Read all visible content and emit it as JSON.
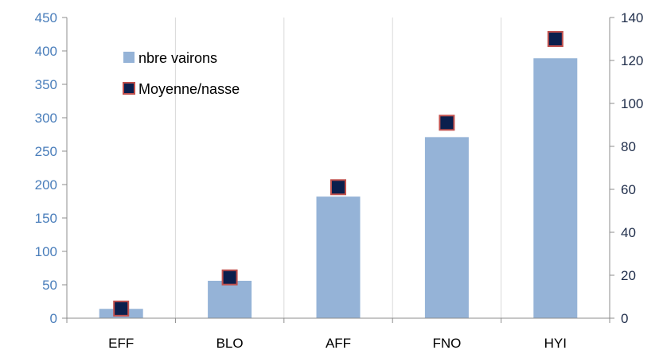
{
  "chart_data": {
    "type": "bar",
    "categories": [
      "EFF",
      "BLO",
      "AFF",
      "FNO",
      "HYI"
    ],
    "series": [
      {
        "name": "nbre vairons",
        "type": "bar",
        "axis": "left",
        "values": [
          14,
          56,
          182,
          271,
          389
        ],
        "color": "#95b3d7"
      },
      {
        "name": "Moyenne/nasse",
        "type": "scatter",
        "axis": "right",
        "values": [
          4.5,
          19,
          61,
          91,
          130
        ],
        "color": "#0b1f4d",
        "border_color": "#c0504d"
      }
    ],
    "y_left": {
      "min": 0,
      "max": 450,
      "step": 50,
      "ticks": [
        "0",
        "50",
        "100",
        "150",
        "200",
        "250",
        "300",
        "350",
        "400",
        "450"
      ],
      "color": "#4a7ebb"
    },
    "y_right": {
      "min": 0,
      "max": 140,
      "step": 20,
      "ticks": [
        "0",
        "20",
        "40",
        "60",
        "80",
        "100",
        "120",
        "140"
      ],
      "color": "#1f2d4a"
    },
    "grid": "vertical",
    "legend_position": "top-left",
    "title": "",
    "xlabel": "",
    "ylabel": ""
  }
}
